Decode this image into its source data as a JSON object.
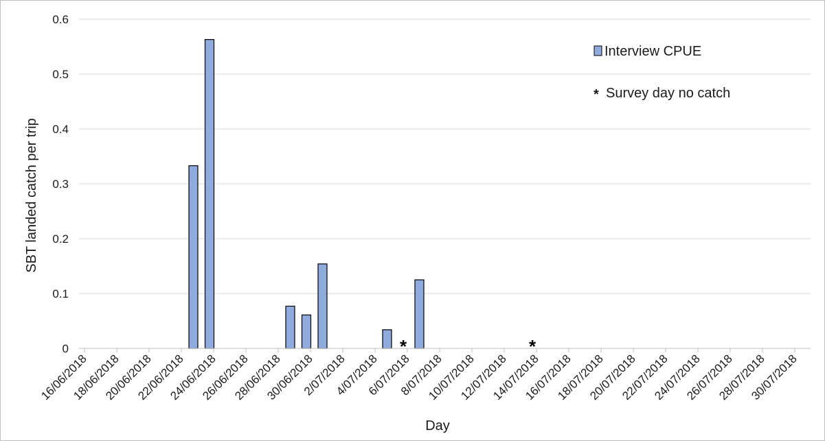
{
  "chart_data": {
    "type": "bar",
    "title": "",
    "xlabel": "Day",
    "ylabel": "SBT landed catch per trip",
    "ylim": [
      0,
      0.6
    ],
    "yticks": [
      "0",
      "0.1",
      "0.2",
      "0.3",
      "0.4",
      "0.5",
      "0.6"
    ],
    "x_tick_labels": [
      "16/06/2018",
      "18/06/2018",
      "20/06/2018",
      "22/06/2018",
      "24/06/2018",
      "26/06/2018",
      "28/06/2018",
      "30/06/2018",
      "2/07/2018",
      "4/07/2018",
      "6/07/2018",
      "8/07/2018",
      "10/07/2018",
      "12/07/2018",
      "14/07/2018",
      "16/07/2018",
      "18/07/2018",
      "20/07/2018",
      "22/07/2018",
      "24/07/2018",
      "26/07/2018",
      "28/07/2018",
      "30/07/2018"
    ],
    "categories": [
      "23/06/2018",
      "24/06/2018",
      "29/06/2018",
      "30/06/2018",
      "1/07/2018",
      "5/07/2018",
      "7/07/2018"
    ],
    "series": [
      {
        "name": "Interview CPUE",
        "values": [
          0.333,
          0.563,
          0.077,
          0.061,
          0.154,
          0.034,
          0.125
        ],
        "color": "#8faadc"
      }
    ],
    "no_catch_days": [
      "6/07/2018",
      "14/07/2018"
    ],
    "no_catch_marker": "*",
    "legend": {
      "position": "top-right",
      "bar_label": "Interview CPUE",
      "marker_label": "Survey day no catch"
    },
    "grid": true
  }
}
